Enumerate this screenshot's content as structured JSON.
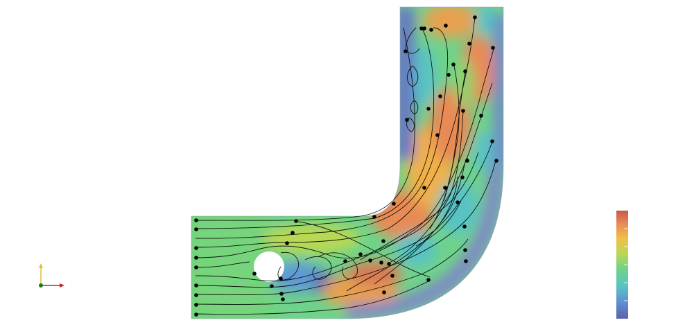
{
  "view": {
    "background": "#ffffff",
    "dataset": "flow-past-cylinder-in-bent-channel",
    "representation": "surface-with-streamlines"
  },
  "colormap": {
    "name": "turbo-like",
    "stops": [
      "#5a63a8",
      "#5f8bd3",
      "#59c3c4",
      "#6fd38a",
      "#b9d853",
      "#f0c04a",
      "#e88a55",
      "#c55a4e"
    ]
  },
  "scalar_bar": {
    "title": "",
    "tick_labels": [],
    "ticks": 6
  },
  "streamlines": {
    "seed_count": 15,
    "line_color": "#000000",
    "glyph_color": "#000000"
  },
  "axes_widget": {
    "x_color": "#cc1f1f",
    "y_color": "#d6c33a",
    "z_color": "#1a7a1a",
    "labels": []
  }
}
